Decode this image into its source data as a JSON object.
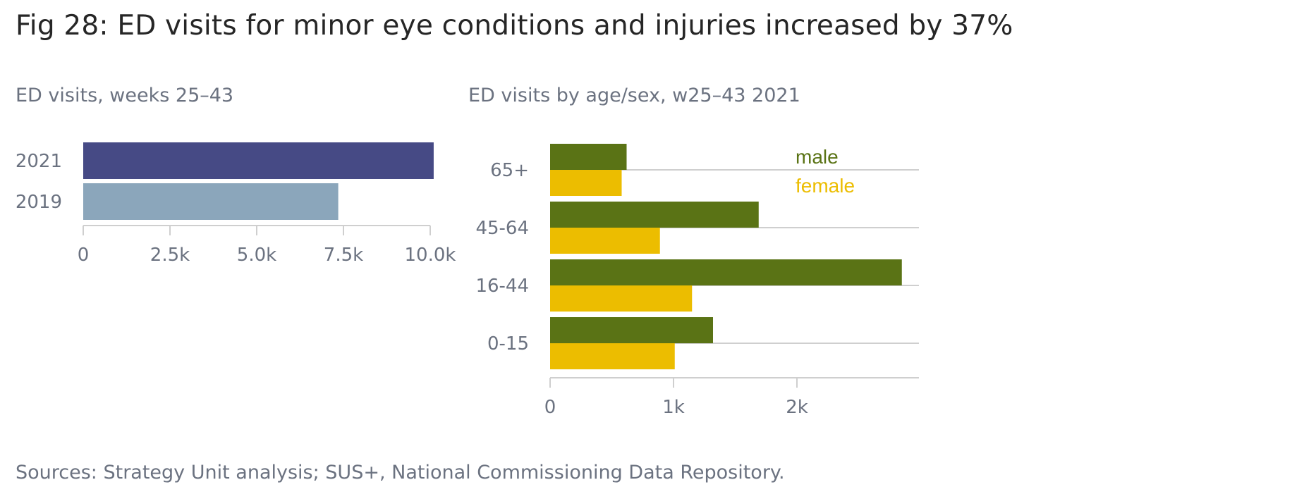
{
  "title": "Fig 28: ED visits for minor eye conditions and injuries increased by 37%",
  "source": "Sources: Strategy Unit analysis; SUS+, National Commissioning Data Repository.",
  "colors": {
    "bar_2021": "#464a85",
    "bar_2019": "#8ba6bb",
    "male": "#5a7315",
    "female": "#ecbd00",
    "axis": "#cfcfcf",
    "text": "#6b7280"
  },
  "chart_data": [
    {
      "type": "bar",
      "orientation": "horizontal",
      "title": "ED visits, weeks 25–43",
      "categories": [
        "2021",
        "2019"
      ],
      "values": [
        10100,
        7350
      ],
      "xlim": [
        0,
        10000
      ],
      "xticks": [
        0,
        2500,
        5000,
        7500,
        10000
      ],
      "xtick_labels": [
        "0",
        "2.5k",
        "5.0k",
        "7.5k",
        "10.0k"
      ]
    },
    {
      "type": "bar",
      "orientation": "horizontal",
      "title": "ED visits by age/sex, w25–43 2021",
      "categories": [
        "65+",
        "45-64",
        "16-44",
        "0-15"
      ],
      "series": [
        {
          "name": "male",
          "values": [
            620,
            1690,
            2850,
            1320
          ]
        },
        {
          "name": "female",
          "values": [
            580,
            890,
            1150,
            1010
          ]
        }
      ],
      "xlim": [
        0,
        3000
      ],
      "xticks": [
        0,
        1000,
        2000
      ],
      "xtick_labels": [
        "0",
        "1k",
        "2k"
      ],
      "legend_position": "top-right",
      "grid": true
    }
  ]
}
